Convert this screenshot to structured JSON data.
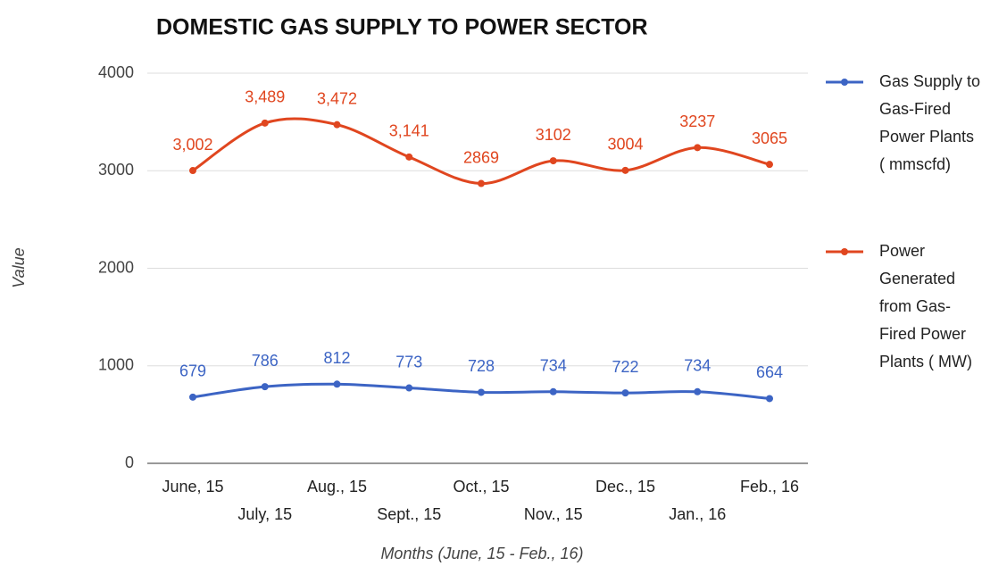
{
  "chart_data": {
    "type": "line",
    "title": "DOMESTIC GAS SUPPLY TO POWER SECTOR",
    "x_label": "Months (June, 15 - Feb., 16)",
    "y_label": "Value",
    "categories": [
      "June, 15",
      "July, 15",
      "Aug., 15",
      "Sept., 15",
      "Oct., 15",
      "Nov., 15",
      "Dec., 15",
      "Jan., 16",
      "Feb., 16"
    ],
    "series": [
      {
        "name": "Gas Supply to Gas-Fired Power Plants ( mmscfd)",
        "color": "#3c64c4",
        "values": [
          679,
          786,
          812,
          773,
          728,
          734,
          722,
          734,
          664
        ]
      },
      {
        "name": "Power Generated from Gas-Fired Power Plants ( MW)",
        "color": "#e0461f",
        "values": [
          3002,
          3489,
          3472,
          3141,
          2869,
          3102,
          3004,
          3237,
          3065
        ],
        "value_labels": [
          "3,002",
          "3,489",
          "3,472",
          "3,141",
          "2869",
          "3102",
          "3004",
          "3237",
          "3065"
        ]
      }
    ],
    "ylim": [
      0,
      4000
    ],
    "yticks": [
      0,
      1000,
      2000,
      3000,
      4000
    ],
    "grid": true,
    "legend": "right"
  }
}
